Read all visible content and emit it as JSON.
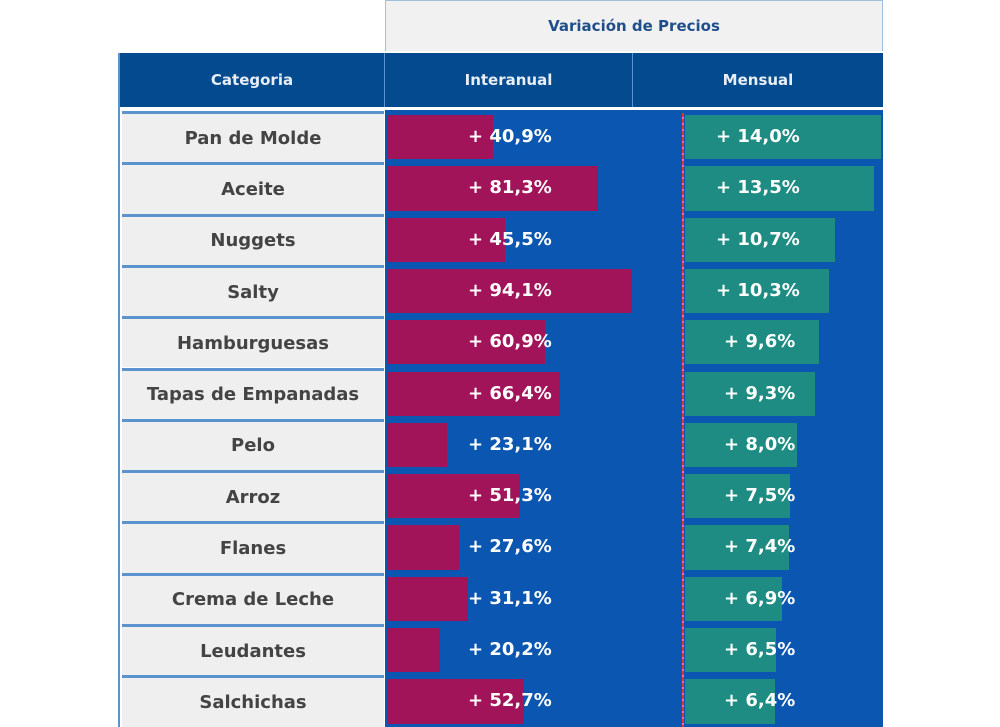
{
  "title": "Variación de Precios",
  "headers": {
    "category": "Categoria",
    "interanual": "Interanual",
    "mensual": "Mensual"
  },
  "colors": {
    "header": "#044a8f",
    "background": "#0a56b0",
    "interanual": "#a1145a",
    "mensual": "#1e8c82"
  },
  "chart_data": {
    "type": "bar",
    "title": "Variación de Precios",
    "categories": [
      "Pan de Molde",
      "Aceite",
      "Nuggets",
      "Salty",
      "Hamburguesas",
      "Tapas de Empanadas",
      "Pelo",
      "Arroz",
      "Flanes",
      "Crema de Leche",
      "Leudantes",
      "Salchichas"
    ],
    "series": [
      {
        "name": "Interanual",
        "values": [
          40.9,
          81.3,
          45.5,
          94.1,
          60.9,
          66.4,
          23.1,
          51.3,
          27.6,
          31.1,
          20.2,
          52.7
        ],
        "labels": [
          "+ 40,9%",
          "+ 81,3%",
          "+ 45,5%",
          "+ 94,1%",
          "+ 60,9%",
          "+ 66,4%",
          "+ 23,1%",
          "+ 51,3%",
          "+ 27,6%",
          "+ 31,1%",
          "+ 20,2%",
          "+ 52,7%"
        ]
      },
      {
        "name": "Mensual",
        "values": [
          14.0,
          13.5,
          10.7,
          10.3,
          9.6,
          9.3,
          8.0,
          7.5,
          7.4,
          6.9,
          6.5,
          6.4
        ],
        "labels": [
          "+ 14,0%",
          "+ 13,5%",
          "+ 10,7%",
          "+ 10,3%",
          "+ 9,6%",
          "+ 9,3%",
          "+ 8,0%",
          "+ 7,5%",
          "+ 7,4%",
          "+ 6,9%",
          "+ 6,5%",
          "+ 6,4%"
        ]
      }
    ]
  }
}
